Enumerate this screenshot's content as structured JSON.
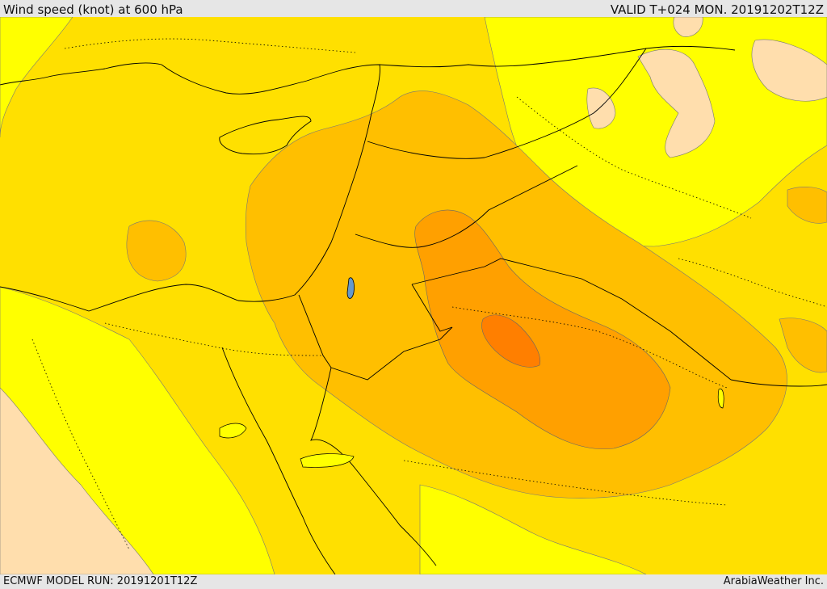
{
  "header": {
    "title": "Wind speed (knot) at 600 hPa",
    "valid": "VALID T+024 MON. 20191202T12Z"
  },
  "footer": {
    "model_run": "ECMWF MODEL RUN: 20191201T12Z",
    "credit": "ArabiaWeather Inc."
  },
  "palette": {
    "lightest": "#ffff00",
    "light": "#ffe000",
    "mid": "#ffbf00",
    "strong": "#ffa000",
    "strongest": "#ff7f00",
    "pale": "#ffdead",
    "background": "#e6e6e6",
    "coast": "#000000"
  }
}
